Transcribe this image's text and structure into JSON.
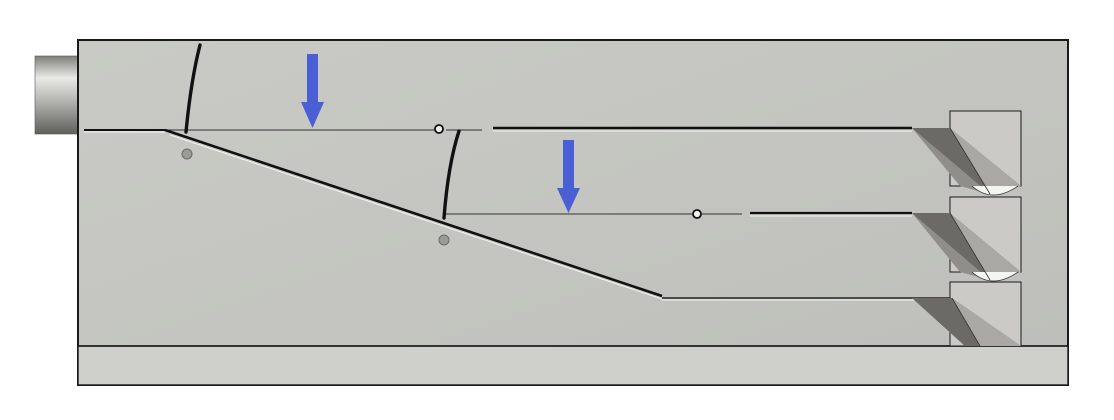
{
  "diagram": {
    "kind": "cad-side-section",
    "labels": [],
    "colors": {
      "body_fill": "#c7c8c3",
      "body_edge": "#1a1a1a",
      "base_plate": "#cfd0cb",
      "groove": "#111111",
      "groove_highlight": "#f4f4f0",
      "arrow": "#4a5fd4",
      "pin": "#9a9a96",
      "shaft_light": "#e6e6e3",
      "shaft_dark": "#6d6d69",
      "wedge_dark": "#6b6a66",
      "wedge_mid": "#8f8e8a",
      "wedge_light": "#c9c8c3"
    },
    "parts": {
      "shaft": "cylindrical-shaft",
      "arrows": [
        "push-arrow-upper",
        "push-arrow-lower"
      ],
      "gates": [
        "flap-gate-upper",
        "flap-gate-lower"
      ],
      "exits": [
        "exit-chute-top",
        "exit-chute-middle",
        "exit-chute-bottom"
      ]
    }
  }
}
